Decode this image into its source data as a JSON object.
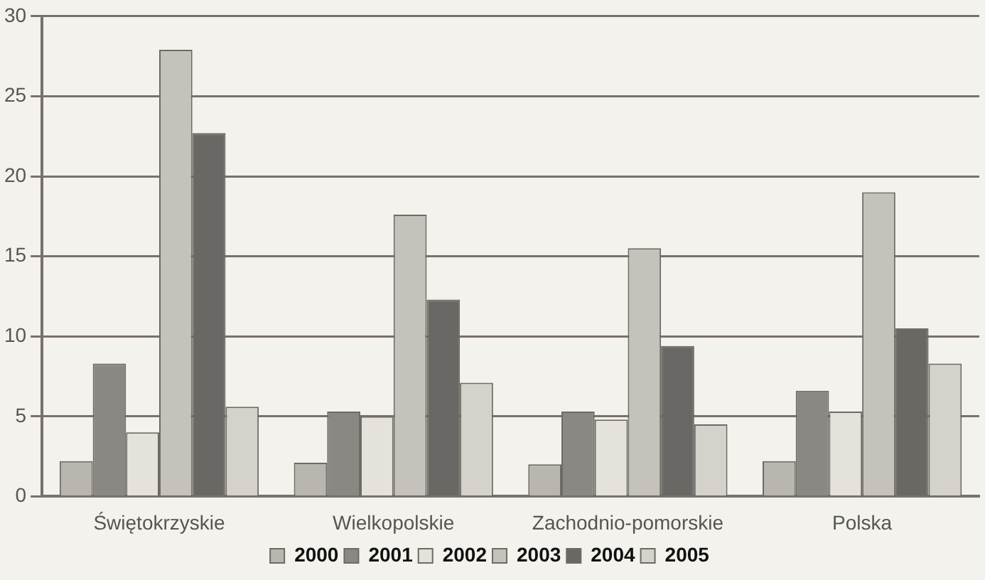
{
  "chart_data": {
    "type": "bar",
    "categories": [
      "Świętokrzyskie",
      "Wielkopolskie",
      "Zachodnio-pomorskie",
      "Polska"
    ],
    "series": [
      {
        "name": "2000",
        "color": "#b8b6ae",
        "values": [
          2.2,
          2.1,
          2.0,
          2.2
        ]
      },
      {
        "name": "2001",
        "color": "#8a8882",
        "values": [
          8.3,
          5.3,
          5.3,
          6.6
        ]
      },
      {
        "name": "2002",
        "color": "#e4e2da",
        "values": [
          4.0,
          5.0,
          4.8,
          5.3
        ]
      },
      {
        "name": "2003",
        "color": "#c4c2ba",
        "values": [
          27.9,
          17.6,
          15.5,
          19.0
        ]
      },
      {
        "name": "2004",
        "color": "#6a6864",
        "values": [
          22.7,
          12.3,
          9.4,
          10.5
        ]
      },
      {
        "name": "2005",
        "color": "#d4d2ca",
        "values": [
          5.6,
          7.1,
          4.5,
          8.3
        ]
      }
    ],
    "ylim": [
      0,
      30
    ],
    "yticks": [
      0,
      5,
      10,
      15,
      20,
      25,
      30
    ],
    "grid": "y",
    "legend": "bottom"
  }
}
